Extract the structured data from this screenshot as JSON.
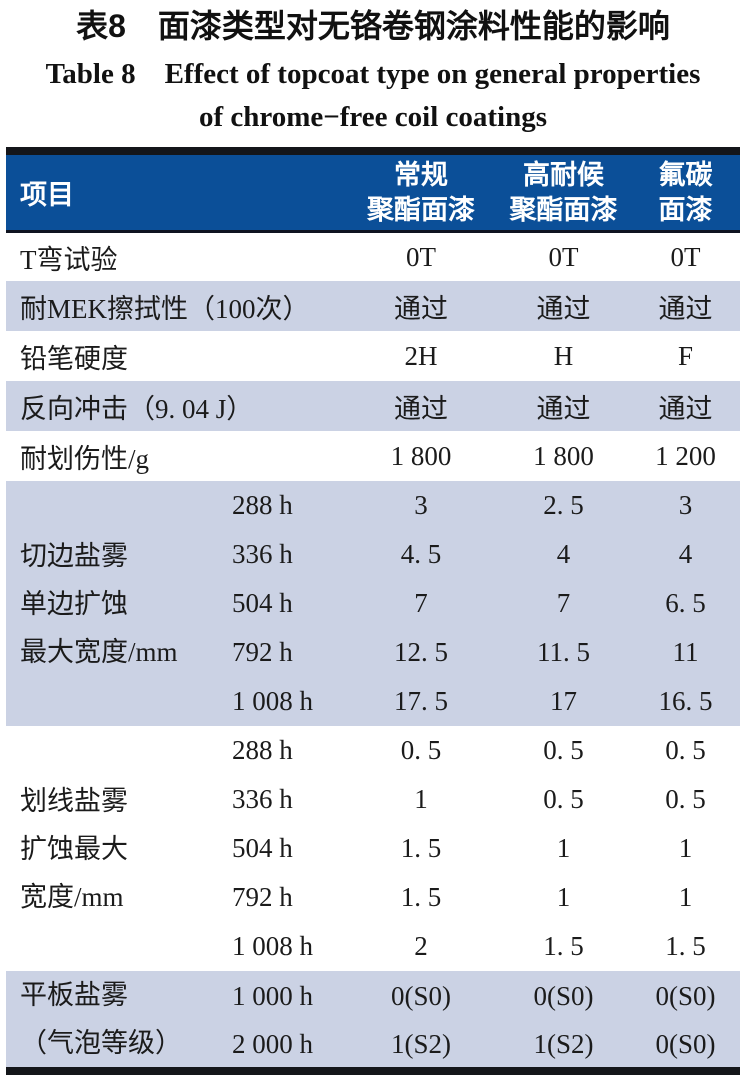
{
  "title": {
    "zh": "表8　面漆类型对无铬卷钢涂料性能的影响",
    "en_line1": "Table 8 Effect of topcoat type on general properties",
    "en_line2": "of chrome−free coil coatings"
  },
  "colors": {
    "header_bg": "#0b4f98",
    "header_text": "#ffffff",
    "header_rule": "#0f1320",
    "row_alt_bg": "#cbd2e4",
    "rule_dark": "#14161a",
    "body_text": "#1b1b1b"
  },
  "table": {
    "item_header": "项目",
    "columns": [
      {
        "line1": "常规",
        "line2": "聚酯面漆"
      },
      {
        "line1": "高耐候",
        "line2": "聚酯面漆"
      },
      {
        "line1": "氟碳",
        "line2": "面漆"
      }
    ],
    "simple_rows": [
      {
        "label": "T弯试验",
        "values": [
          "0T",
          "0T",
          "0T"
        ]
      },
      {
        "label": "耐MEK擦拭性（100次）",
        "values": [
          "通过",
          "通过",
          "通过"
        ]
      },
      {
        "label": "铅笔硬度",
        "values": [
          "2H",
          "H",
          "F"
        ]
      },
      {
        "label": "反向冲击（9. 04 J）",
        "values": [
          "通过",
          "通过",
          "通过"
        ]
      },
      {
        "label": "耐划伤性/g",
        "values": [
          "1 800",
          "1 800",
          "1 200"
        ]
      }
    ],
    "groups": [
      {
        "label_lines": [
          "切边盐雾",
          "单边扩蚀",
          "最大宽度/mm"
        ],
        "rows": [
          {
            "time": "288 h",
            "values": [
              "3",
              "2. 5",
              "3"
            ]
          },
          {
            "time": "336 h",
            "values": [
              "4. 5",
              "4",
              "4"
            ]
          },
          {
            "time": "504 h",
            "values": [
              "7",
              "7",
              "6. 5"
            ]
          },
          {
            "time": "792 h",
            "values": [
              "12. 5",
              "11. 5",
              "11"
            ]
          },
          {
            "time": "1 008 h",
            "values": [
              "17. 5",
              "17",
              "16. 5"
            ]
          }
        ]
      },
      {
        "label_lines": [
          "划线盐雾",
          "扩蚀最大",
          "宽度/mm"
        ],
        "rows": [
          {
            "time": "288 h",
            "values": [
              "0. 5",
              "0. 5",
              "0. 5"
            ]
          },
          {
            "time": "336 h",
            "values": [
              "1",
              "0. 5",
              "0. 5"
            ]
          },
          {
            "time": "504 h",
            "values": [
              "1. 5",
              "1",
              "1"
            ]
          },
          {
            "time": "792 h",
            "values": [
              "1. 5",
              "1",
              "1"
            ]
          },
          {
            "time": "1 008 h",
            "values": [
              "2",
              "1. 5",
              "1. 5"
            ]
          }
        ]
      },
      {
        "label_lines": [
          "平板盐雾",
          "（气泡等级）"
        ],
        "rows": [
          {
            "time": "1 000 h",
            "values": [
              "0(S0)",
              "0(S0)",
              "0(S0)"
            ]
          },
          {
            "time": "2 000 h",
            "values": [
              "1(S2)",
              "1(S2)",
              "0(S0)"
            ]
          }
        ]
      }
    ]
  }
}
